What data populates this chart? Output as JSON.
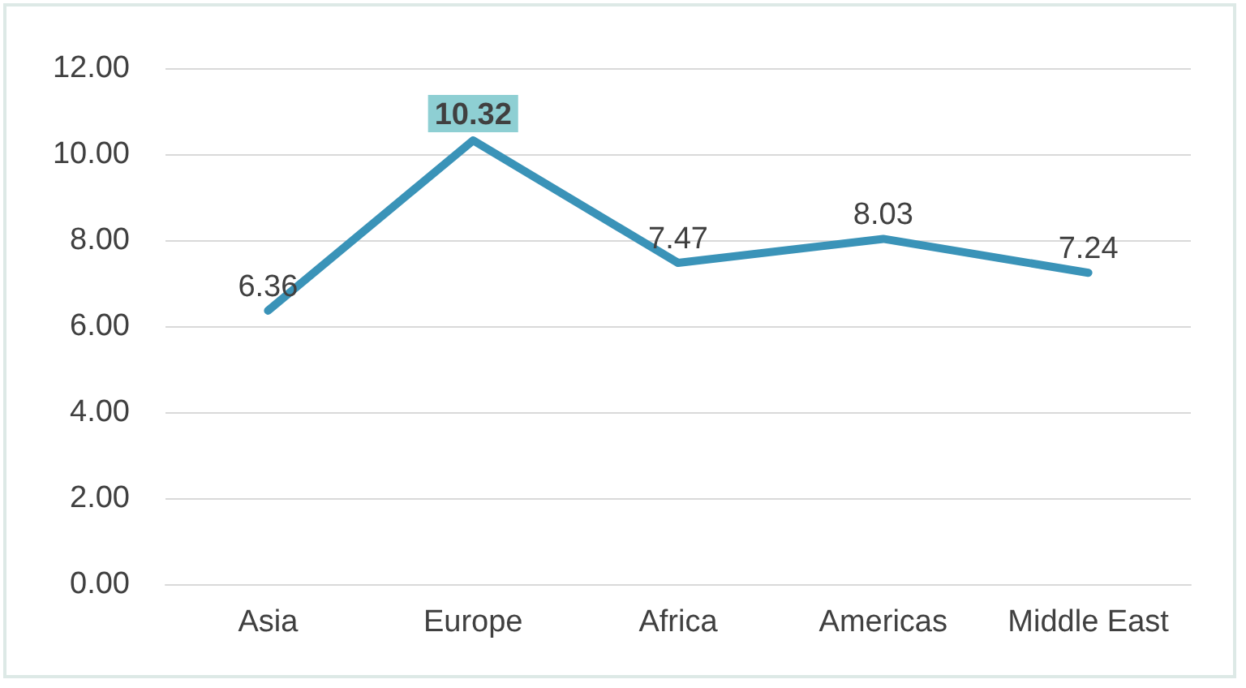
{
  "chart_data": {
    "type": "line",
    "categories": [
      "Asia",
      "Europe",
      "Africa",
      "Americas",
      "Middle East"
    ],
    "series": [
      {
        "color": "#3a93b8",
        "values": [
          6.36,
          10.32,
          7.47,
          8.03,
          7.24
        ]
      }
    ],
    "ylim": [
      0,
      12
    ],
    "yticks": [
      {
        "value": 0,
        "label": "0.00"
      },
      {
        "value": 2,
        "label": "2.00"
      },
      {
        "value": 4,
        "label": "4.00"
      },
      {
        "value": 6,
        "label": "6.00"
      },
      {
        "value": 8,
        "label": "8.00"
      },
      {
        "value": 10,
        "label": "10.00"
      },
      {
        "value": 12,
        "label": "12.00"
      }
    ],
    "grid": "y",
    "marker": "none",
    "line_style": "solid",
    "data_labels": true
  }
}
